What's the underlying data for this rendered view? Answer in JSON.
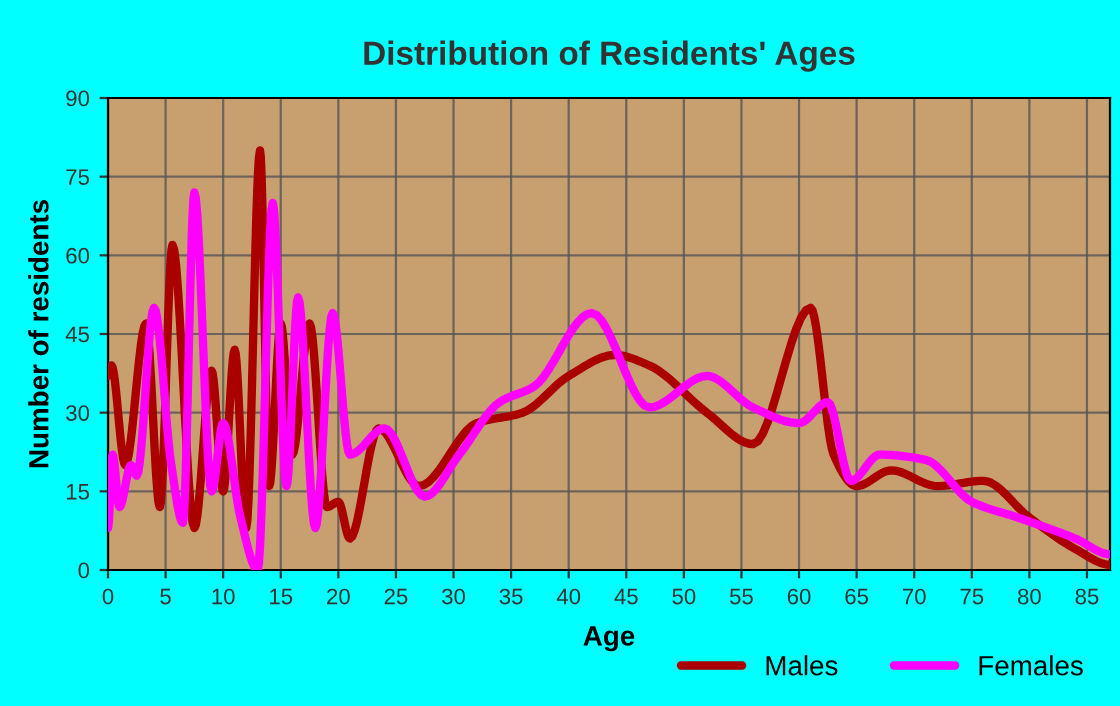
{
  "chart_data": {
    "type": "line",
    "title": "Distribution of Residents' Ages",
    "xlabel": "Age",
    "ylabel": "Number of residents",
    "xlim": [
      0,
      87
    ],
    "xticks": [
      0,
      5,
      10,
      15,
      20,
      25,
      30,
      35,
      40,
      45,
      50,
      55,
      60,
      65,
      70,
      75,
      80,
      85
    ],
    "ylim": [
      0,
      90
    ],
    "yticks": [
      0,
      15,
      30,
      45,
      60,
      75,
      90
    ],
    "grid": true,
    "legend": "bottom right",
    "marker": "none",
    "line_style": "solid",
    "series": [
      {
        "name": "Males",
        "color": "#aa0000",
        "x": [
          0,
          0.3,
          1.5,
          3.3,
          4.5,
          5.6,
          7.5,
          9,
          10,
          11,
          12,
          13.2,
          14,
          15,
          16,
          17.5,
          19,
          20,
          21,
          23.5,
          27,
          32,
          36,
          40,
          44,
          47,
          52,
          56,
          61,
          63,
          65,
          68,
          72,
          76,
          80,
          84,
          87
        ],
        "values": [
          37,
          39,
          20,
          47,
          12,
          62,
          8,
          38,
          15,
          42,
          8,
          80,
          16,
          47,
          22,
          47,
          12,
          13,
          6,
          27,
          16,
          28,
          30,
          37,
          41,
          39,
          30,
          24,
          50,
          22,
          16,
          19,
          16,
          17,
          10,
          4,
          1
        ]
      },
      {
        "name": "Females",
        "color": "#ff00ff",
        "x": [
          0,
          0.4,
          1,
          2,
          2.5,
          4,
          5.5,
          6.5,
          7.5,
          9,
          10,
          11.5,
          13,
          14.3,
          15.5,
          16.5,
          18,
          19.5,
          21,
          24,
          27.5,
          30.5,
          34,
          37,
          42,
          47,
          52,
          56,
          60,
          62.5,
          64.5,
          67,
          71,
          75,
          79,
          84,
          87
        ],
        "values": [
          8,
          22,
          12,
          20,
          18,
          50,
          20,
          9,
          72,
          15,
          28,
          10,
          0,
          70,
          16,
          52,
          8,
          49,
          22,
          27,
          14,
          22,
          32,
          35,
          49,
          31,
          37,
          31,
          28,
          32,
          17,
          22,
          21,
          13,
          10,
          6,
          3
        ]
      }
    ]
  }
}
